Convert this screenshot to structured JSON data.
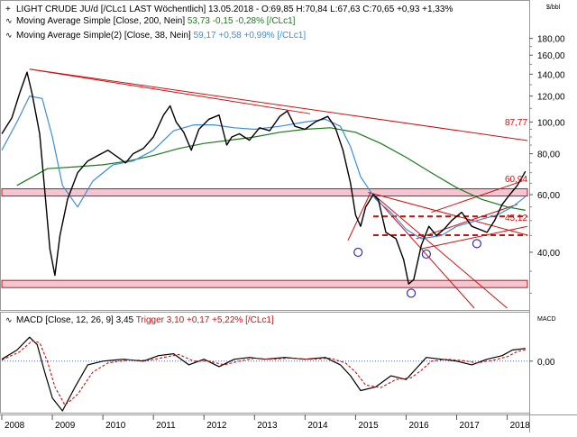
{
  "header": {
    "line1": "LIGHT CRUDE JU/d [/CLc1 LAST Wöchentlich] 13.05.2018 - O:69,85 H:70,84 L:67,63 C:70,65 +0,93 +1,33%",
    "line2_prefix": "Moving Average Simple [Close, 200, Nein]",
    "line2_values": "53,73 -0,15 -0,28% [/CLc1]",
    "line3_prefix": "Moving Average Simple(2) [Close, 38, Nein]",
    "line3_values": "59,17 +0,58 +0,99% [/CLc1]",
    "unit": "$/bbl"
  },
  "macd_header": {
    "prefix": "MACD [Close, 12, 26, 9] 3,45",
    "trigger": "Trigger 3,10 +0,17 +5,22% [/CLc1]",
    "label": "MACD"
  },
  "annotations": {
    "resistance": "87,77",
    "level_mid": "60,94",
    "level_low": "45,12"
  },
  "colors": {
    "price": "#000000",
    "ma200": "#1a7a1a",
    "ma38": "#3a8fd8",
    "trend": "#cc1111",
    "band": "#f3c6d2",
    "macd_signal": "#cc1111"
  },
  "chart_data": [
    {
      "type": "line",
      "title": "LIGHT CRUDE JU/d [/CLc1 LAST Wöchentlich]",
      "scale": "log",
      "ylim": [
        27,
        195
      ],
      "xlim": [
        2008.0,
        2018.4
      ],
      "y_ticks": [
        40,
        60,
        80,
        100,
        120,
        140,
        160,
        180
      ],
      "y_tick_labels": [
        "40,00",
        "60,00",
        "80,00",
        "100,00",
        "120,00",
        "140,00",
        "160,00",
        "180,00"
      ],
      "x_tick_labels": [
        "2008",
        "2009",
        "2010",
        "2011",
        "2012",
        "2013",
        "2014",
        "2015",
        "2016",
        "2017",
        "2018"
      ],
      "series": [
        {
          "name": "LIGHT CRUDE JU/d",
          "x": [
            2008.0,
            2008.2,
            2008.35,
            2008.5,
            2008.6,
            2008.75,
            2008.85,
            2008.95,
            2009.05,
            2009.15,
            2009.3,
            2009.5,
            2009.7,
            2009.9,
            2010.1,
            2010.3,
            2010.45,
            2010.6,
            2010.8,
            2011.0,
            2011.2,
            2011.33,
            2011.45,
            2011.6,
            2011.75,
            2011.9,
            2012.1,
            2012.3,
            2012.45,
            2012.55,
            2012.7,
            2012.9,
            2013.1,
            2013.3,
            2013.5,
            2013.65,
            2013.8,
            2014.0,
            2014.2,
            2014.45,
            2014.6,
            2014.75,
            2014.9,
            2015.0,
            2015.1,
            2015.2,
            2015.35,
            2015.45,
            2015.6,
            2015.7,
            2015.8,
            2015.95,
            2016.05,
            2016.15,
            2016.3,
            2016.45,
            2016.6,
            2016.75,
            2016.9,
            2017.1,
            2017.3,
            2017.45,
            2017.6,
            2017.75,
            2017.9,
            2018.05,
            2018.2,
            2018.36
          ],
          "values": [
            92,
            103,
            122,
            142,
            122,
            92,
            62,
            41,
            34,
            45,
            58,
            70,
            76,
            79,
            82,
            78,
            75,
            80,
            83,
            90,
            105,
            112,
            100,
            93,
            82,
            95,
            102,
            105,
            85,
            90,
            92,
            88,
            96,
            94,
            104,
            108,
            97,
            95,
            100,
            104,
            96,
            82,
            65,
            52,
            48,
            55,
            60,
            58,
            46,
            45,
            44,
            38,
            32,
            33,
            42,
            48,
            45,
            47,
            50,
            53,
            48,
            47,
            46,
            50,
            56,
            60,
            64,
            70.65
          ]
        },
        {
          "name": "Moving Average Simple [Close, 200, Nein]",
          "x": [
            2008.3,
            2008.9,
            2009.5,
            2010.0,
            2010.5,
            2011.0,
            2011.5,
            2012.0,
            2012.5,
            2013.0,
            2013.5,
            2014.0,
            2014.5,
            2015.0,
            2015.5,
            2016.0,
            2016.5,
            2017.0,
            2017.5,
            2018.0,
            2018.36
          ],
          "values": [
            64,
            72,
            73,
            74,
            76,
            79,
            83,
            86,
            88,
            90,
            93,
            95,
            96,
            93,
            86,
            78,
            70,
            63,
            58,
            55,
            53.73
          ]
        },
        {
          "name": "Moving Average Simple(2) [Close, 38, Nein]",
          "x": [
            2008.0,
            2008.3,
            2008.55,
            2008.8,
            2009.0,
            2009.2,
            2009.5,
            2009.8,
            2010.2,
            2010.6,
            2011.0,
            2011.4,
            2011.8,
            2012.2,
            2012.6,
            2013.0,
            2013.5,
            2014.0,
            2014.4,
            2014.7,
            2014.9,
            2015.1,
            2015.4,
            2015.7,
            2016.0,
            2016.3,
            2016.7,
            2017.0,
            2017.4,
            2017.8,
            2018.1,
            2018.36
          ],
          "values": [
            82,
            100,
            120,
            118,
            90,
            64,
            55,
            66,
            74,
            76,
            82,
            94,
            98,
            98,
            96,
            95,
            97,
            100,
            102,
            97,
            84,
            68,
            58,
            53,
            47,
            44,
            45,
            48,
            50,
            52,
            55,
            59.17
          ]
        }
      ],
      "horizontal_levels": [
        60.94,
        45.12,
        32
      ],
      "resistance_label": "87,77",
      "support_labels": [
        "60,94",
        "45,12"
      ]
    },
    {
      "type": "line",
      "title": "MACD [Close, 12, 26, 9]",
      "ylim": [
        -14,
        9
      ],
      "y_ticks": [
        0
      ],
      "y_tick_labels": [
        "0,00"
      ],
      "series": [
        {
          "name": "MACD",
          "x": [
            2008.0,
            2008.3,
            2008.55,
            2008.7,
            2008.85,
            2009.0,
            2009.2,
            2009.45,
            2009.7,
            2010.0,
            2010.4,
            2010.8,
            2011.1,
            2011.4,
            2011.7,
            2012.0,
            2012.3,
            2012.6,
            2012.9,
            2013.2,
            2013.6,
            2014.0,
            2014.4,
            2014.7,
            2014.9,
            2015.1,
            2015.4,
            2015.7,
            2016.0,
            2016.2,
            2016.4,
            2016.7,
            2017.0,
            2017.3,
            2017.6,
            2017.9,
            2018.1,
            2018.36
          ],
          "values": [
            0.5,
            3,
            6.5,
            4.5,
            -3,
            -10,
            -13.5,
            -7,
            -1,
            0,
            0.5,
            0,
            1.5,
            2,
            -1,
            0.5,
            -1.5,
            0.5,
            1,
            0.5,
            1,
            0.5,
            1,
            -1,
            -4,
            -8,
            -7,
            -4,
            -5,
            -2,
            1,
            0.5,
            0,
            -1,
            0.5,
            1.5,
            3,
            3.45
          ]
        },
        {
          "name": "Trigger",
          "x": [
            2008.0,
            2008.35,
            2008.6,
            2008.75,
            2008.9,
            2009.05,
            2009.25,
            2009.5,
            2009.8,
            2010.1,
            2010.5,
            2010.9,
            2011.2,
            2011.5,
            2011.8,
            2012.1,
            2012.4,
            2012.7,
            2013.0,
            2013.3,
            2013.7,
            2014.1,
            2014.5,
            2014.8,
            2015.0,
            2015.2,
            2015.5,
            2015.8,
            2016.1,
            2016.3,
            2016.5,
            2016.8,
            2017.1,
            2017.4,
            2017.7,
            2018.0,
            2018.2,
            2018.36
          ],
          "values": [
            0.3,
            2.5,
            5.5,
            5,
            0,
            -7,
            -12,
            -9,
            -3,
            -0.5,
            0.3,
            0.2,
            1,
            1.8,
            0,
            0,
            -1,
            0,
            0.8,
            0.5,
            0.8,
            0.5,
            0.8,
            -0.5,
            -3,
            -6.5,
            -7.2,
            -5,
            -4.5,
            -2.5,
            0,
            0.5,
            0.2,
            -0.5,
            0.2,
            1.2,
            2.6,
            3.1
          ]
        }
      ]
    }
  ]
}
